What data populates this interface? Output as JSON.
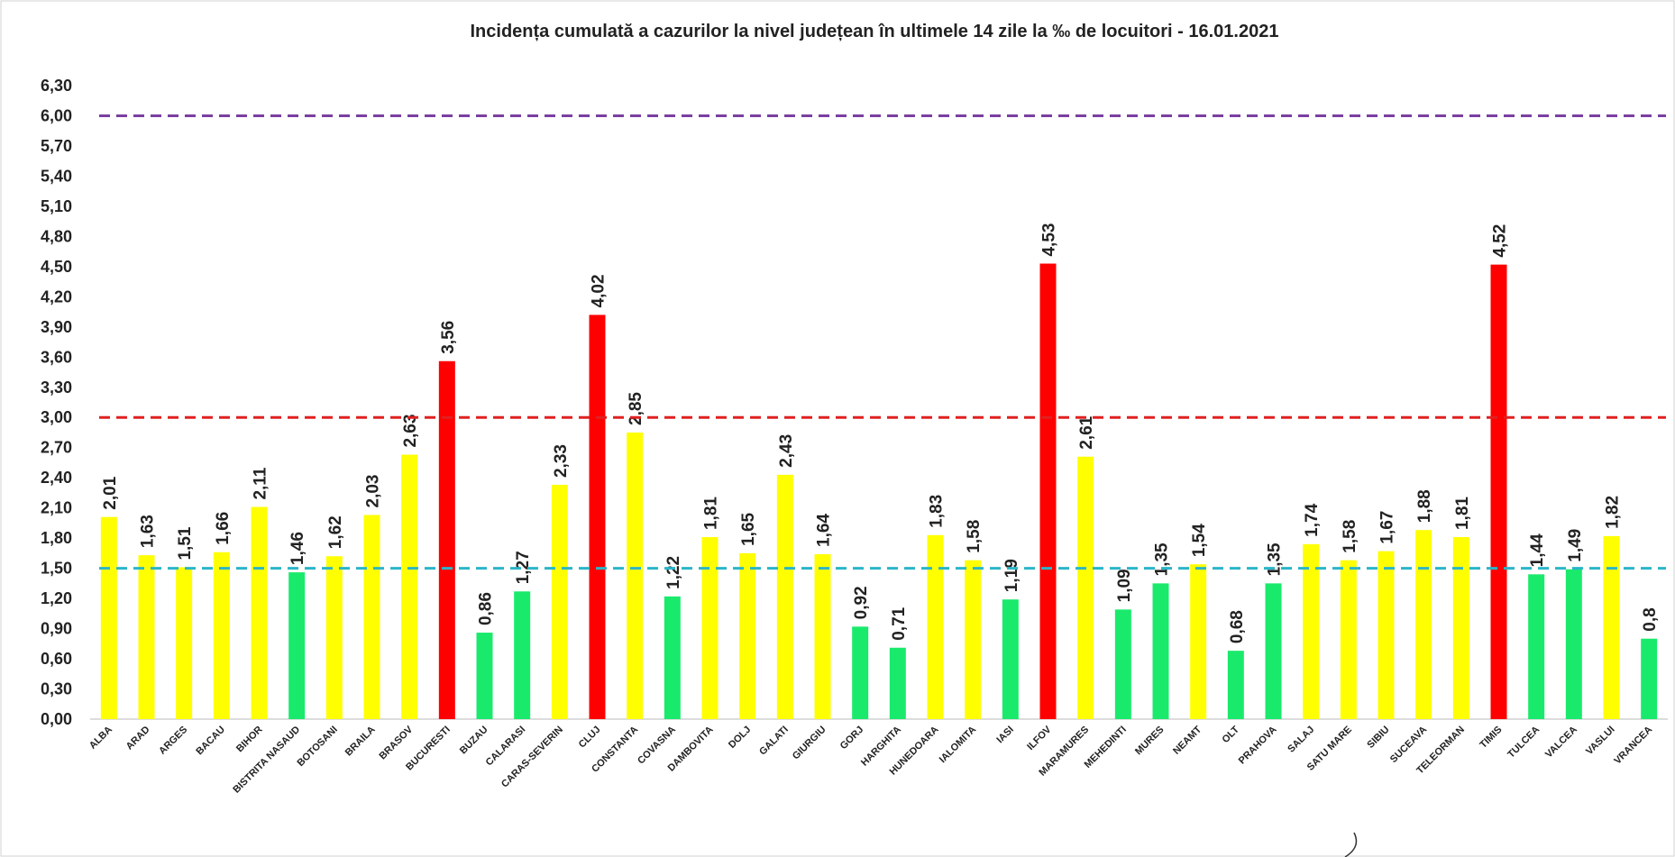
{
  "chart_data": {
    "type": "bar",
    "title": "Incidența cumulată a cazurilor la nivel județean în ultimele 14 zile   la ‰ de locuitori  - 16.01.2021",
    "categories": [
      "ALBA",
      "ARAD",
      "ARGES",
      "BACAU",
      "BIHOR",
      "BISTRITA NASAUD",
      "BOTOSANI",
      "BRAILA",
      "BRASOV",
      "BUCURESTI",
      "BUZAU",
      "CALARASI",
      "CARAS-SEVERIN",
      "CLUJ",
      "CONSTANTA",
      "COVASNA",
      "DAMBOVITA",
      "DOLJ",
      "GALATI",
      "GIURGIU",
      "GORJ",
      "HARGHITA",
      "HUNEDOARA",
      "IALOMITA",
      "IASI",
      "ILFOV",
      "MARAMURES",
      "MEHEDINTI",
      "MURES",
      "NEAMT",
      "OLT",
      "PRAHOVA",
      "SALAJ",
      "SATU MARE",
      "SIBIU",
      "SUCEAVA",
      "TELEORMAN",
      "TIMIS",
      "TULCEA",
      "VALCEA",
      "VASLUI",
      "VRANCEA"
    ],
    "values": [
      2.01,
      1.63,
      1.51,
      1.66,
      2.11,
      1.46,
      1.62,
      2.03,
      2.63,
      3.56,
      0.86,
      1.27,
      2.33,
      4.02,
      2.85,
      1.22,
      1.81,
      1.65,
      2.43,
      1.64,
      0.92,
      0.71,
      1.83,
      1.58,
      1.19,
      4.53,
      2.61,
      1.09,
      1.35,
      1.54,
      0.68,
      1.35,
      1.74,
      1.58,
      1.67,
      1.88,
      1.81,
      4.52,
      1.44,
      1.49,
      1.82,
      0.8
    ],
    "value_labels": [
      "2,01",
      "1,63",
      "1,51",
      "1,66",
      "2,11",
      "1,46",
      "1,62",
      "2,03",
      "2,63",
      "3,56",
      "0,86",
      "1,27",
      "2,33",
      "4,02",
      "2,85",
      "1,22",
      "1,81",
      "1,65",
      "2,43",
      "1,64",
      "0,92",
      "0,71",
      "1,83",
      "1,58",
      "1,19",
      "4,53",
      "2,61",
      "1,09",
      "1,35",
      "1,54",
      "0,68",
      "1,35",
      "1,74",
      "1,58",
      "1,67",
      "1,88",
      "1,81",
      "4,52",
      "1,44",
      "1,49",
      "1,82",
      "0,8"
    ],
    "ylim": [
      0,
      6.3
    ],
    "yticks": [
      "0,00",
      "0,30",
      "0,60",
      "0,90",
      "1,20",
      "1,50",
      "1,80",
      "2,10",
      "2,40",
      "2,70",
      "3,00",
      "3,30",
      "3,60",
      "3,90",
      "4,20",
      "4,50",
      "4,80",
      "5,10",
      "5,40",
      "5,70",
      "6,00",
      "6,30"
    ],
    "thresholds": [
      {
        "value": 1.5,
        "color": "#2bb5c8"
      },
      {
        "value": 3.0,
        "color": "#e02020"
      },
      {
        "value": 6.0,
        "color": "#7a3fa0"
      }
    ],
    "colors": {
      "green": "#1aea6c",
      "yellow": "#ffff00",
      "red": "#ff0000"
    },
    "grid": false,
    "xlabel": "",
    "ylabel": ""
  }
}
